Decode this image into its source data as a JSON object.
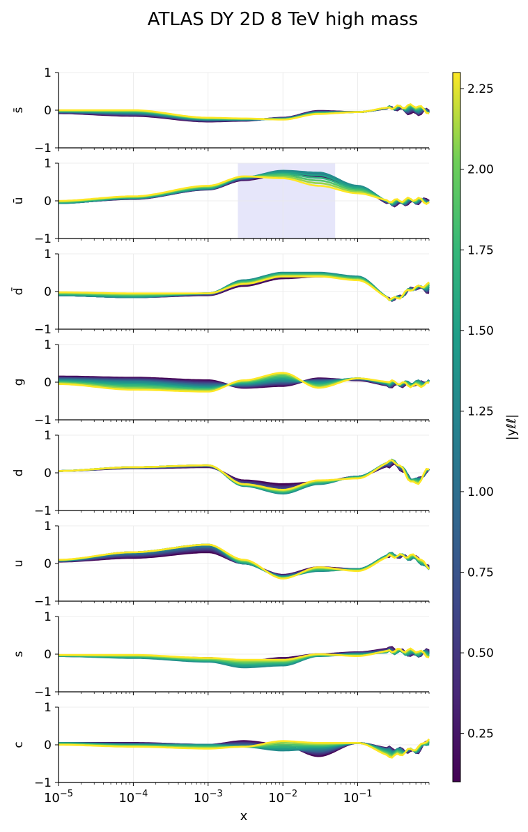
{
  "chart_data": {
    "type": "line",
    "title": "ATLAS DY 2D 8 TeV high mass",
    "xlabel": "x",
    "xscale": "log",
    "xlim": [
      1e-05,
      0.9
    ],
    "x_ticks": [
      {
        "base": "10",
        "exp": "−5"
      },
      {
        "base": "10",
        "exp": "−4"
      },
      {
        "base": "10",
        "exp": "−3"
      },
      {
        "base": "10",
        "exp": "−2"
      },
      {
        "base": "10",
        "exp": "−1"
      }
    ],
    "ylim": [
      -1,
      1
    ],
    "y_tick_labels": [
      "1",
      "0",
      "−1"
    ],
    "colorbar": {
      "label": "|yℓℓ|",
      "colormap": "viridis",
      "range": [
        0.1,
        2.3
      ],
      "tick_labels": [
        "0.25",
        "0.50",
        "0.75",
        "1.00",
        "1.25",
        "1.50",
        "1.75",
        "2.00",
        "2.25"
      ],
      "tick_values": [
        0.25,
        0.5,
        0.75,
        1.0,
        1.25,
        1.5,
        1.75,
        2.0,
        2.25
      ]
    },
    "highlight": {
      "panel": "ū",
      "x_range": [
        0.0025,
        0.05
      ],
      "color": "#e6e6fa"
    },
    "curve_rapidities": [
      0.1,
      0.3,
      0.5,
      0.7,
      0.9,
      1.1,
      1.3,
      1.5,
      1.7,
      1.9,
      2.1,
      2.3
    ],
    "panels": [
      {
        "label": "s̄",
        "x": [
          1e-05,
          0.0001,
          0.001,
          0.003,
          0.01,
          0.03,
          0.1,
          0.3,
          0.6,
          0.9
        ],
        "series": [
          {
            "yll": 0.1,
            "values": [
              -0.08,
              -0.15,
              -0.3,
              -0.28,
              -0.2,
              -0.02,
              -0.05,
              0.05,
              -0.1,
              0.0
            ]
          },
          {
            "yll": 2.3,
            "values": [
              0.0,
              0.0,
              -0.2,
              -0.22,
              -0.25,
              -0.1,
              -0.05,
              0.08,
              0.12,
              -0.05
            ]
          }
        ]
      },
      {
        "label": "ū",
        "x": [
          1e-05,
          0.0001,
          0.001,
          0.003,
          0.01,
          0.03,
          0.1,
          0.3,
          0.6,
          0.9
        ],
        "series": [
          {
            "yll": 0.1,
            "values": [
              -0.05,
              0.05,
              0.3,
              0.55,
              0.7,
              0.65,
              0.35,
              -0.1,
              -0.05,
              0.05
            ]
          },
          {
            "yll": 1.3,
            "values": [
              -0.06,
              0.07,
              0.32,
              0.62,
              0.8,
              0.75,
              0.4,
              -0.05,
              0.0,
              0.0
            ]
          },
          {
            "yll": 2.3,
            "values": [
              0.0,
              0.12,
              0.4,
              0.65,
              0.6,
              0.4,
              0.2,
              0.0,
              0.05,
              -0.05
            ]
          }
        ]
      },
      {
        "label": "d̄",
        "x": [
          1e-05,
          0.0001,
          0.001,
          0.003,
          0.01,
          0.03,
          0.1,
          0.3,
          0.6,
          0.9
        ],
        "series": [
          {
            "yll": 0.1,
            "values": [
              -0.1,
              -0.15,
              -0.1,
              0.15,
              0.35,
              0.4,
              0.35,
              -0.2,
              0.1,
              0.0
            ]
          },
          {
            "yll": 1.3,
            "values": [
              -0.1,
              -0.15,
              -0.05,
              0.3,
              0.5,
              0.5,
              0.4,
              -0.2,
              0.1,
              0.1
            ]
          },
          {
            "yll": 2.3,
            "values": [
              -0.02,
              -0.05,
              -0.05,
              0.2,
              0.4,
              0.4,
              0.3,
              -0.2,
              0.1,
              0.2
            ]
          }
        ]
      },
      {
        "label": "g",
        "x": [
          1e-05,
          0.0001,
          0.001,
          0.003,
          0.01,
          0.03,
          0.1,
          0.3,
          0.6,
          0.9
        ],
        "series": [
          {
            "yll": 0.1,
            "values": [
              0.15,
              0.12,
              0.05,
              -0.15,
              -0.1,
              0.1,
              0.05,
              -0.1,
              -0.05,
              0.05
            ]
          },
          {
            "yll": 1.3,
            "values": [
              0.05,
              0.0,
              -0.12,
              -0.05,
              0.05,
              0.0,
              0.1,
              -0.05,
              0.0,
              0.0
            ]
          },
          {
            "yll": 2.3,
            "values": [
              -0.05,
              -0.2,
              -0.25,
              0.05,
              0.25,
              -0.15,
              0.1,
              0.0,
              -0.1,
              -0.05
            ]
          }
        ]
      },
      {
        "label": "d",
        "x": [
          1e-05,
          0.0001,
          0.001,
          0.003,
          0.01,
          0.03,
          0.1,
          0.3,
          0.6,
          0.9
        ],
        "series": [
          {
            "yll": 0.1,
            "values": [
              0.05,
              0.12,
              0.15,
              -0.2,
              -0.3,
              -0.25,
              -0.1,
              0.2,
              -0.2,
              0.05
            ]
          },
          {
            "yll": 1.3,
            "values": [
              0.05,
              0.15,
              0.2,
              -0.35,
              -0.55,
              -0.3,
              -0.1,
              0.3,
              -0.2,
              0.05
            ]
          },
          {
            "yll": 2.3,
            "values": [
              0.05,
              0.15,
              0.2,
              -0.3,
              -0.45,
              -0.2,
              -0.15,
              0.3,
              -0.3,
              0.1
            ]
          }
        ]
      },
      {
        "label": "u",
        "x": [
          1e-05,
          0.0001,
          0.001,
          0.003,
          0.01,
          0.03,
          0.1,
          0.3,
          0.6,
          0.9
        ],
        "series": [
          {
            "yll": 0.1,
            "values": [
              0.05,
              0.15,
              0.3,
              0.0,
              -0.3,
              -0.1,
              -0.15,
              0.2,
              0.15,
              -0.1
            ]
          },
          {
            "yll": 1.3,
            "values": [
              0.08,
              0.3,
              0.5,
              0.0,
              -0.35,
              -0.2,
              -0.15,
              0.25,
              0.1,
              -0.15
            ]
          },
          {
            "yll": 2.3,
            "values": [
              0.1,
              0.3,
              0.5,
              0.1,
              -0.4,
              -0.1,
              -0.2,
              0.2,
              0.2,
              -0.1
            ]
          }
        ]
      },
      {
        "label": "s",
        "x": [
          1e-05,
          0.0001,
          0.001,
          0.003,
          0.01,
          0.03,
          0.1,
          0.3,
          0.6,
          0.9
        ],
        "series": [
          {
            "yll": 0.1,
            "values": [
              -0.05,
              -0.05,
              -0.1,
              -0.2,
              -0.1,
              0.0,
              0.05,
              0.15,
              -0.05,
              0.1
            ]
          },
          {
            "yll": 1.3,
            "values": [
              -0.05,
              -0.1,
              -0.2,
              -0.35,
              -0.3,
              -0.05,
              0.0,
              0.05,
              0.0,
              0.05
            ]
          },
          {
            "yll": 2.3,
            "values": [
              -0.02,
              -0.02,
              -0.1,
              -0.15,
              -0.15,
              0.0,
              -0.05,
              0.1,
              0.1,
              -0.05
            ]
          }
        ]
      },
      {
        "label": "c",
        "x": [
          1e-05,
          0.0001,
          0.001,
          0.003,
          0.01,
          0.03,
          0.1,
          0.3,
          0.6,
          0.9
        ],
        "series": [
          {
            "yll": 0.1,
            "values": [
              0.05,
              0.05,
              0.0,
              0.1,
              0.0,
              -0.3,
              0.05,
              -0.1,
              -0.2,
              0.1
            ]
          },
          {
            "yll": 1.3,
            "values": [
              0.05,
              0.0,
              0.0,
              -0.05,
              -0.15,
              -0.1,
              0.05,
              -0.15,
              -0.15,
              0.05
            ]
          },
          {
            "yll": 2.3,
            "values": [
              0.0,
              -0.05,
              -0.1,
              -0.05,
              0.1,
              0.05,
              0.05,
              -0.3,
              -0.1,
              0.15
            ]
          }
        ]
      }
    ]
  }
}
